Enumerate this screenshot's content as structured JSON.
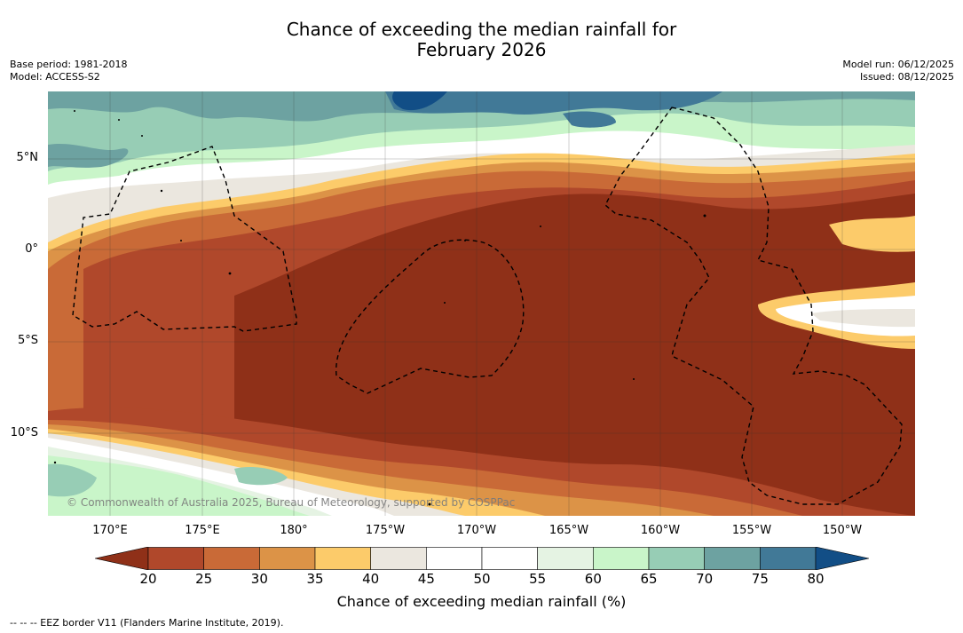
{
  "title": {
    "line1": "Chance of exceeding the median rainfall for",
    "line2": "February 2026"
  },
  "meta": {
    "base_period": "Base period: 1981-2018",
    "model": "Model: ACCESS-S2",
    "model_run": "Model run: 06/12/2025",
    "issued": "Issued: 08/12/2025"
  },
  "map": {
    "lat_labels": [
      "5°N",
      "0°",
      "5°S",
      "10°S"
    ],
    "lon_labels": [
      "170°E",
      "175°E",
      "180°",
      "175°W",
      "170°W",
      "165°W",
      "160°W",
      "155°W",
      "150°W"
    ],
    "copyright": "© Commonwealth of Australia 2025, Bureau of Meteorology, supported by COSPPac",
    "layers": [
      "probability-shading",
      "eez-border"
    ]
  },
  "colorbar": {
    "ticks": [
      "20",
      "25",
      "30",
      "35",
      "40",
      "45",
      "50",
      "55",
      "60",
      "65",
      "70",
      "75",
      "80"
    ],
    "colors": [
      "#8f3018",
      "#b0482b",
      "#c96a37",
      "#dc9347",
      "#fccb6a",
      "#ebe7df",
      "#ffffff",
      "#ffffff",
      "#e5f3e3",
      "#c9f5c9",
      "#97cdb5",
      "#6da2a1",
      "#417997",
      "#124e86"
    ],
    "label": "Chance of exceeding median rainfall (%)"
  },
  "footer": {
    "eez_note": "--  --  -- EEZ border V11 (Flanders Marine Institute, 2019)."
  }
}
